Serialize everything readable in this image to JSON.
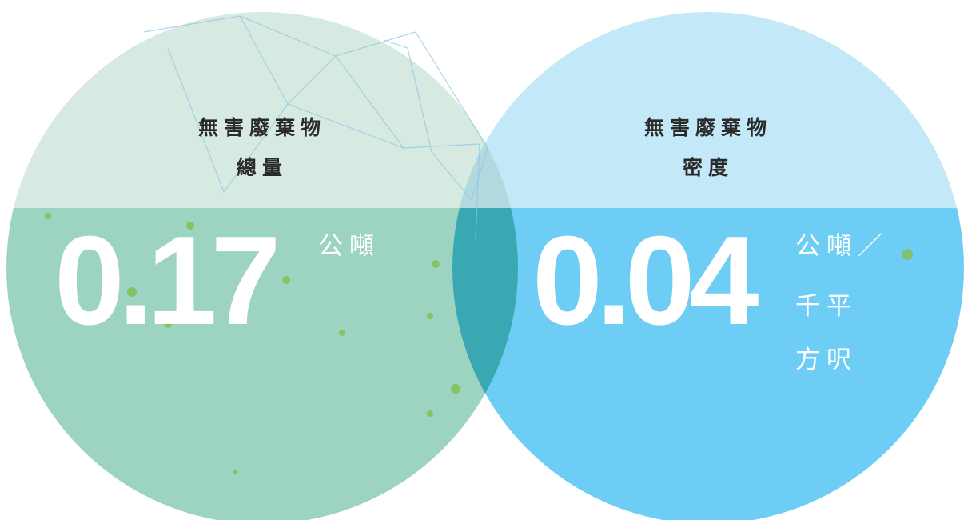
{
  "panels": [
    {
      "title_lines": [
        "無害廢棄物",
        "總量"
      ],
      "value": "0.17",
      "unit_lines": [
        "公噸"
      ]
    },
    {
      "title_lines": [
        "無害廢棄物",
        "密度"
      ],
      "value": "0.04",
      "unit_lines": [
        "公噸／",
        "千平",
        "方呎"
      ]
    }
  ]
}
